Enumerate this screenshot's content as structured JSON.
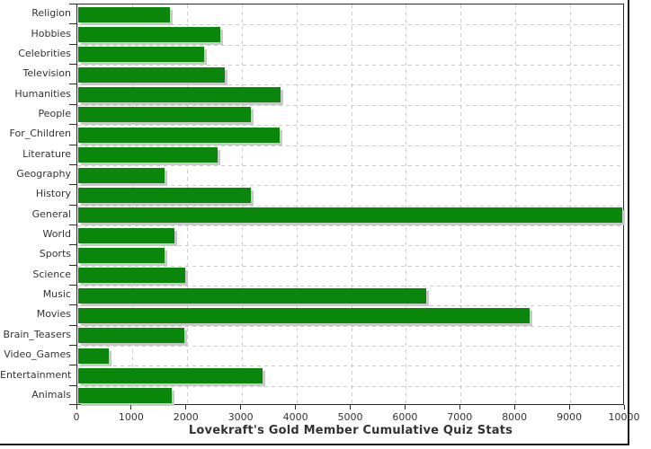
{
  "chart_data": {
    "type": "bar",
    "orientation": "horizontal",
    "title": "Lovekraft's Gold Member Cumulative Quiz Stats",
    "categories": [
      "Religion",
      "Hobbies",
      "Celebrities",
      "Television",
      "Humanities",
      "People",
      "For_Children",
      "Literature",
      "Geography",
      "History",
      "General",
      "World",
      "Sports",
      "Science",
      "Music",
      "Movies",
      "Brain_Teasers",
      "Video_Games",
      "Entertainment",
      "Animals"
    ],
    "values": [
      1680,
      2590,
      2300,
      2680,
      3690,
      3150,
      3670,
      2540,
      1570,
      3160,
      9930,
      1750,
      1570,
      1960,
      6360,
      8250,
      1930,
      550,
      3370,
      1710
    ],
    "xlabel": "",
    "ylabel": "",
    "xlim": [
      0,
      10000
    ],
    "x_ticks": [
      0,
      1000,
      2000,
      3000,
      4000,
      5000,
      6000,
      7000,
      8000,
      9000,
      10000
    ],
    "grid": "dashed",
    "legend": "none",
    "colors": {
      "bar": "#0a870a",
      "bar_shadow": "#c9c9c9",
      "grid": "#cccccc",
      "axis": "#2b2b2b",
      "text": "#333333",
      "frame_edge": "#161616",
      "background": "#ffffff"
    }
  }
}
